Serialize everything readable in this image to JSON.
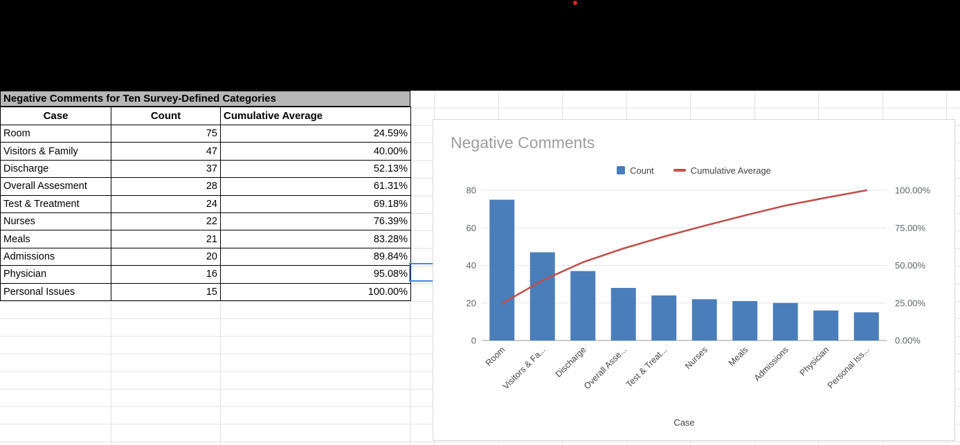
{
  "colors": {
    "red_dot": "#e8251f",
    "selection": "#4285f4",
    "bar": "#4a7eba",
    "line": "#c0504d"
  },
  "table": {
    "title": "Negative Comments for Ten Survey-Defined Categories",
    "columns": [
      "Case",
      "Count",
      "Cumulative Average"
    ],
    "rows": [
      {
        "case": "Room",
        "count": "75",
        "cum": "24.59%"
      },
      {
        "case": "Visitors & Family",
        "count": "47",
        "cum": "40.00%"
      },
      {
        "case": "Discharge",
        "count": "37",
        "cum": "52.13%"
      },
      {
        "case": "Overall Assesment",
        "count": "28",
        "cum": "61.31%"
      },
      {
        "case": "Test & Treatment",
        "count": "24",
        "cum": "69.18%"
      },
      {
        "case": "Nurses",
        "count": "22",
        "cum": "76.39%"
      },
      {
        "case": "Meals",
        "count": "21",
        "cum": "83.28%"
      },
      {
        "case": "Admissions",
        "count": "20",
        "cum": "89.84%"
      },
      {
        "case": "Physician",
        "count": "16",
        "cum": "95.08%"
      },
      {
        "case": "Personal Issues",
        "count": "15",
        "cum": "100.00%"
      }
    ]
  },
  "chart_data": {
    "type": "bar",
    "title": "Negative Comments",
    "xlabel": "Case",
    "categories": [
      "Room",
      "Visitors & Fa...",
      "Discharge",
      "Overall Asse...",
      "Test & Treat...",
      "Nurses",
      "Meals",
      "Admissions",
      "Physician",
      "Personal Iss..."
    ],
    "series": [
      {
        "name": "Count",
        "type": "bar",
        "values": [
          75,
          47,
          37,
          28,
          24,
          22,
          21,
          20,
          16,
          15
        ]
      },
      {
        "name": "Cumulative Average",
        "type": "line",
        "values": [
          24.59,
          40.0,
          52.13,
          61.31,
          69.18,
          76.39,
          83.28,
          89.84,
          95.08,
          100.0
        ]
      }
    ],
    "left_axis": {
      "max": 80,
      "ticks": [
        0,
        20,
        40,
        60,
        80
      ]
    },
    "right_axis": {
      "max": 100,
      "tick_values": [
        0,
        25,
        50,
        75,
        100
      ],
      "tick_labels": [
        "0.00%",
        "25.00%",
        "50.00%",
        "75.00%",
        "100.00%"
      ]
    },
    "legend_position": "top",
    "grid": true,
    "bar_color": "#4a7eba",
    "line_color": "#c0504d"
  }
}
